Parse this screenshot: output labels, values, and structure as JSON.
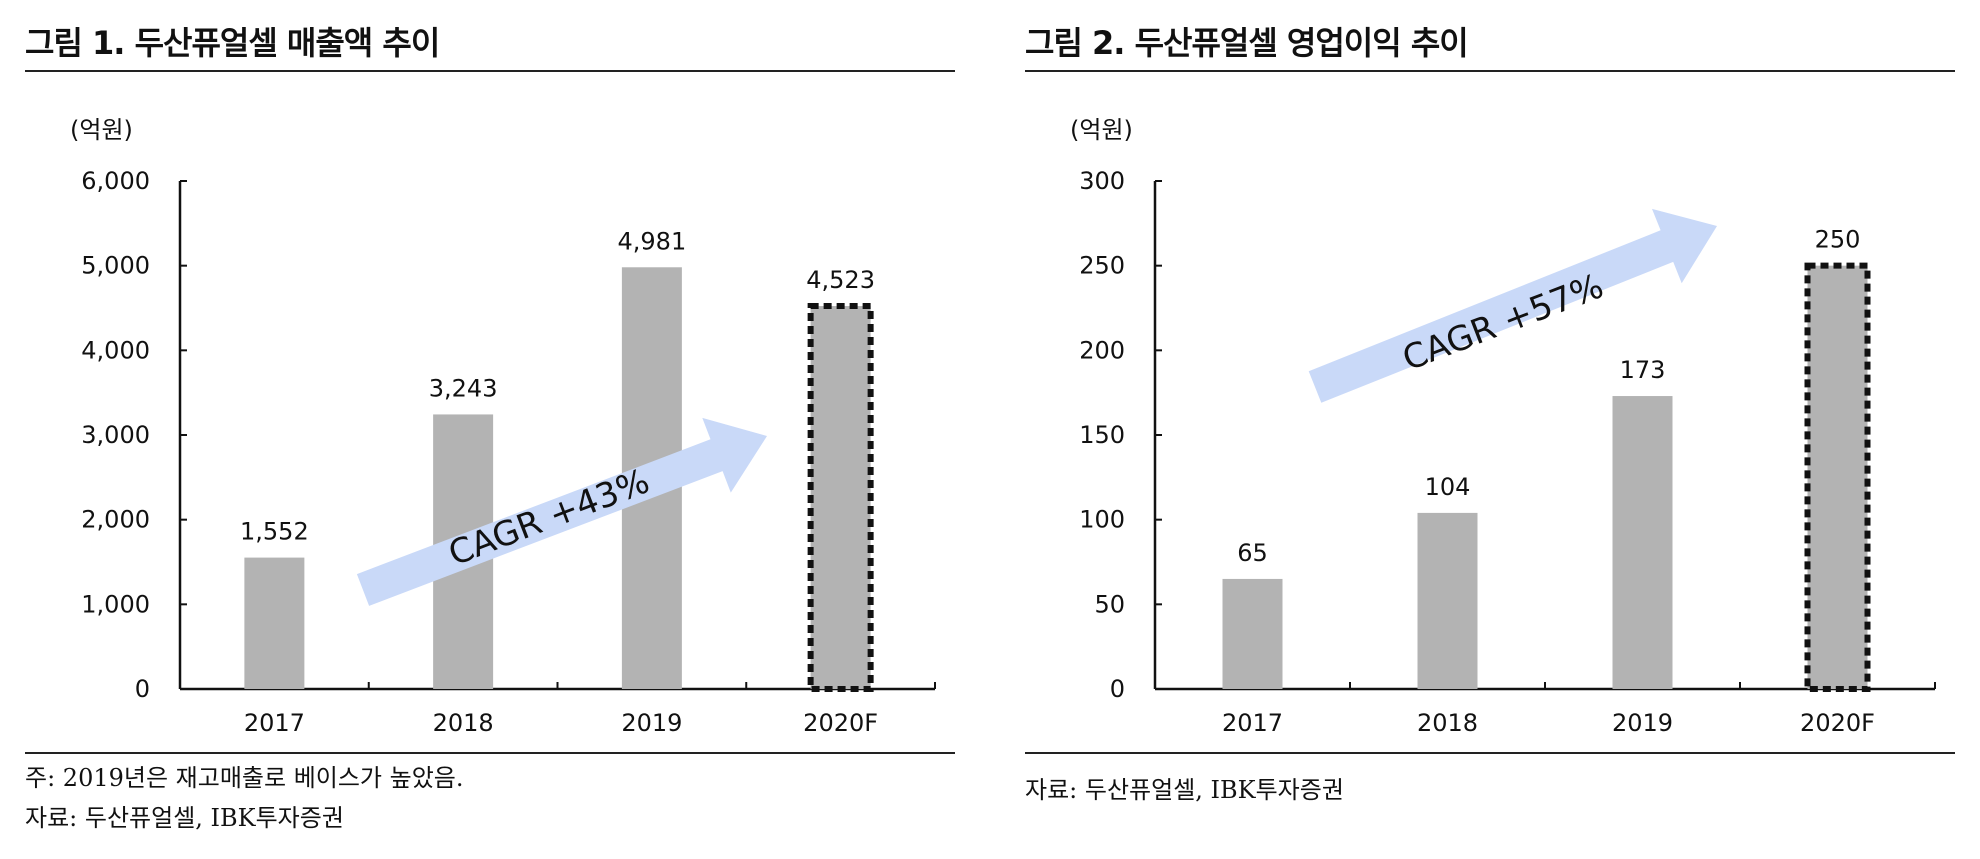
{
  "colors": {
    "bar": "#b3b3b3",
    "arrow": "#c9d9f8",
    "axis": "#111111"
  },
  "charts": [
    {
      "title": "그림 1. 두산퓨얼셀 매출액 추이",
      "unit": "(억원)",
      "notes": [
        "주: 2019년은 재고매출로 베이스가 높았음.",
        "자료: 두산퓨얼셀, IBK투자증권"
      ],
      "annotation": "CAGR +43%",
      "ytick_labels": [
        "0",
        "1,000",
        "2,000",
        "3,000",
        "4,000",
        "5,000",
        "6,000"
      ],
      "data_labels": [
        "1,552",
        "3,243",
        "4,981",
        "4,523"
      ]
    },
    {
      "title": "그림 2. 두산퓨얼셀 영업이익 추이",
      "unit": "(억원)",
      "notes": [
        "자료: 두산퓨얼셀, IBK투자증권"
      ],
      "annotation": "CAGR +57%",
      "ytick_labels": [
        "0",
        "50",
        "100",
        "150",
        "200",
        "250",
        "300"
      ],
      "data_labels": [
        "65",
        "104",
        "173",
        "250"
      ]
    }
  ],
  "chart_data": [
    {
      "type": "bar",
      "categories": [
        "2017",
        "2018",
        "2019",
        "2020F"
      ],
      "values": [
        1552,
        3243,
        4981,
        4523
      ],
      "ylim": [
        0,
        6000
      ],
      "yticks": [
        0,
        1000,
        2000,
        3000,
        4000,
        5000,
        6000
      ],
      "forecast_index": 3,
      "grid": false
    },
    {
      "type": "bar",
      "categories": [
        "2017",
        "2018",
        "2019",
        "2020F"
      ],
      "values": [
        65,
        104,
        173,
        250
      ],
      "ylim": [
        0,
        300
      ],
      "yticks": [
        0,
        50,
        100,
        150,
        200,
        250,
        300
      ],
      "forecast_index": 3,
      "grid": false
    }
  ]
}
